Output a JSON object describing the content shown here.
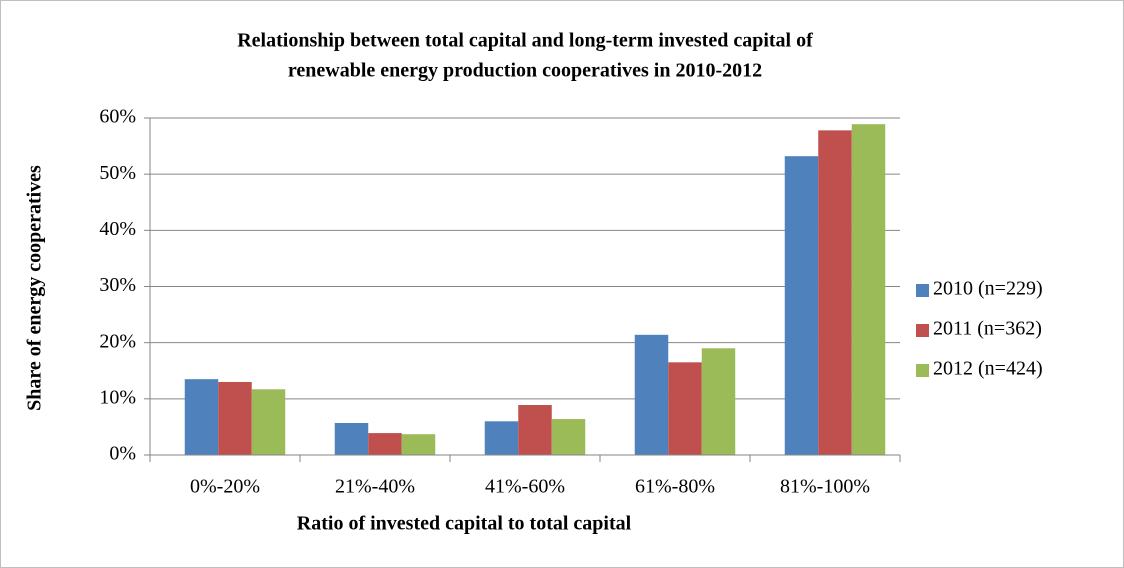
{
  "chart_data": {
    "type": "bar",
    "title": [
      "Relationship between total capital and long-term invested capital of",
      "renewable energy production cooperatives in 2010-2012"
    ],
    "x_label": "Ratio of invested capital to total capital",
    "y_label": "Share of energy cooperatives",
    "categories": [
      "0%-20%",
      "21%-40%",
      "41%-60%",
      "61%-80%",
      "81%-100%"
    ],
    "series": [
      {
        "name": "2010 (n=229)",
        "color": "#4f81bd",
        "values": [
          13.5,
          5.7,
          6.0,
          21.4,
          53.2
        ]
      },
      {
        "name": "2011 (n=362)",
        "color": "#c0504d",
        "values": [
          13.0,
          3.9,
          8.9,
          16.5,
          57.8
        ]
      },
      {
        "name": "2012 (n=424)",
        "color": "#9bbb59",
        "values": [
          11.7,
          3.7,
          6.4,
          19.0,
          58.9
        ]
      }
    ],
    "ylim": [
      0,
      60
    ],
    "yticks": [
      {
        "value": 0,
        "label": "0%"
      },
      {
        "value": 10,
        "label": "10%"
      },
      {
        "value": 20,
        "label": "20%"
      },
      {
        "value": 30,
        "label": "30%"
      },
      {
        "value": 40,
        "label": "40%"
      },
      {
        "value": 50,
        "label": "50%"
      },
      {
        "value": 60,
        "label": "60%"
      }
    ],
    "grid": true,
    "legend": "right"
  }
}
